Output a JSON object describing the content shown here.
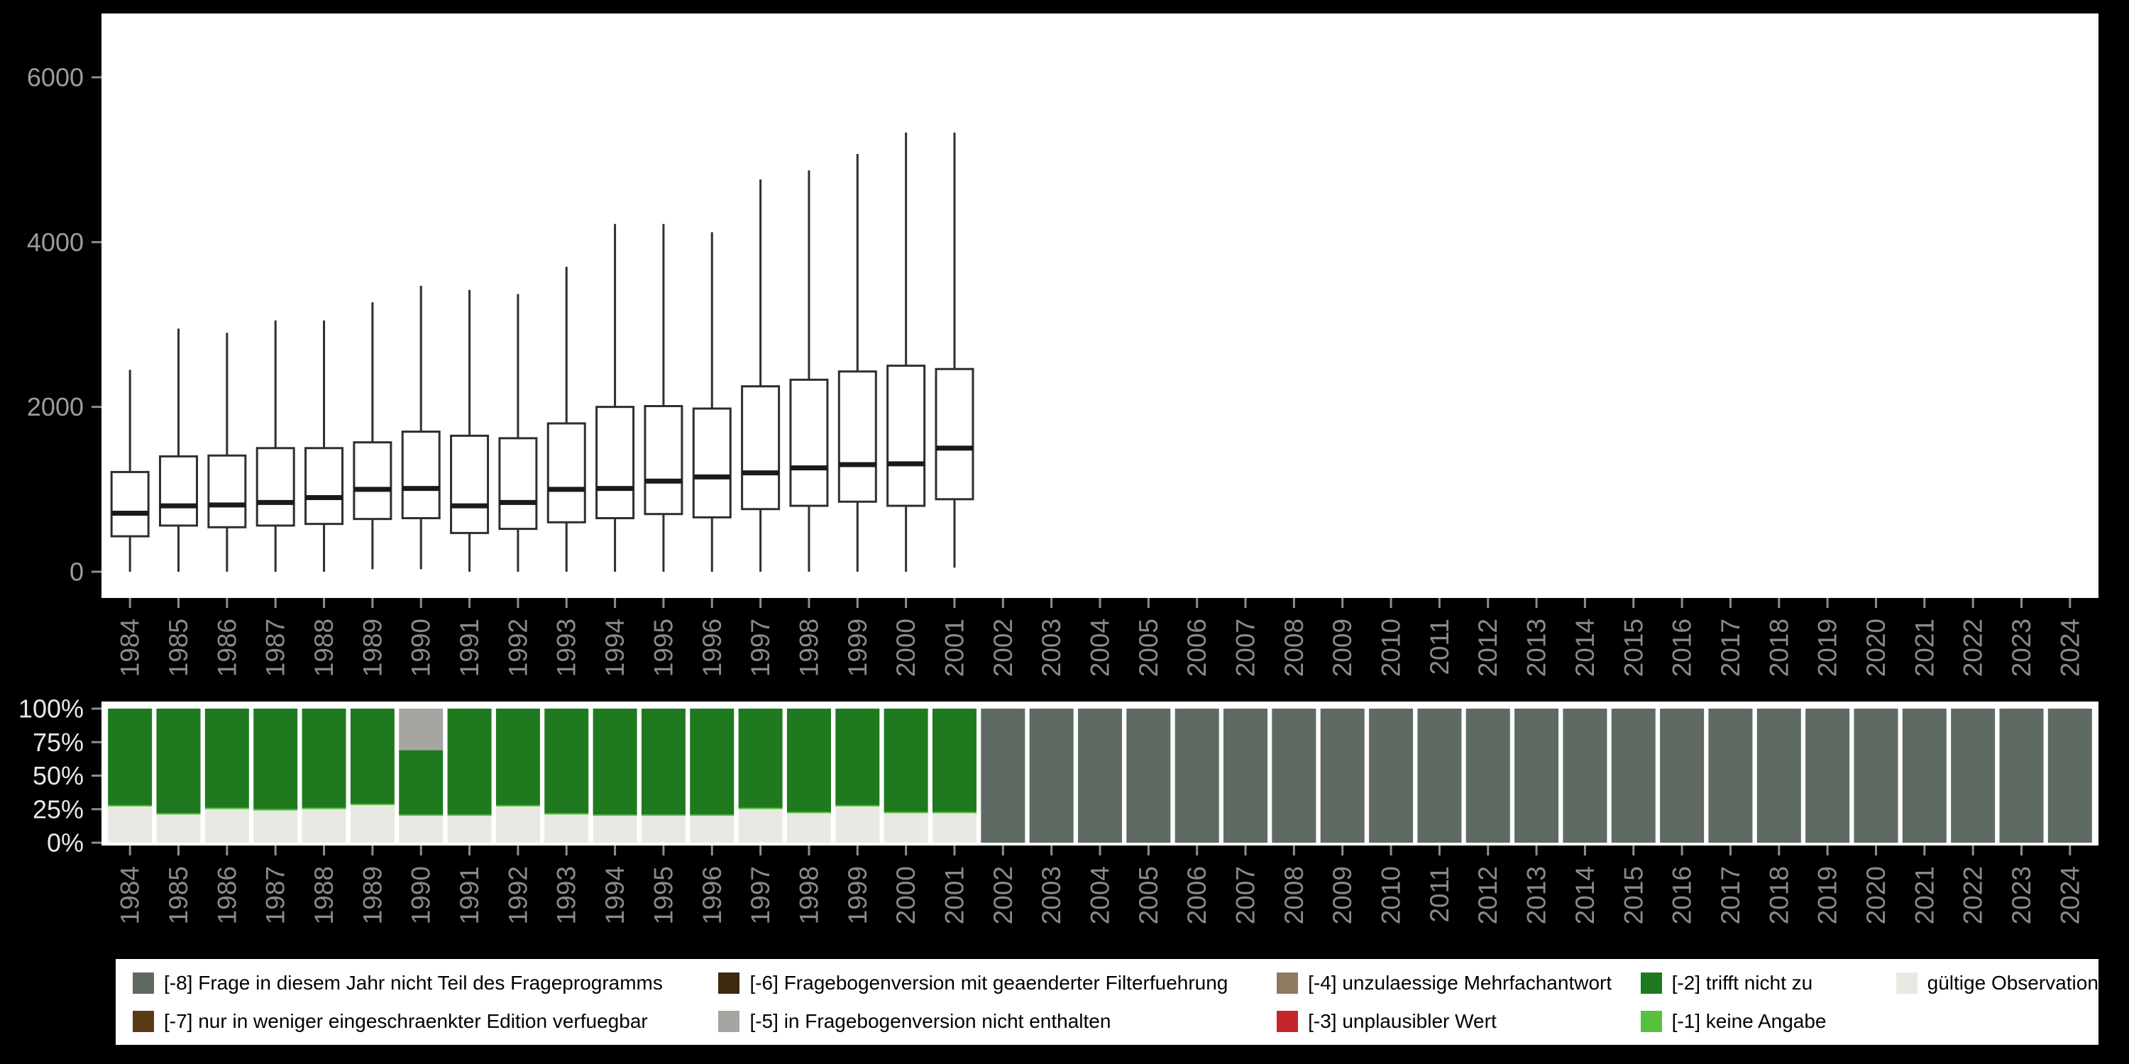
{
  "app": {
    "background_color": "#000000",
    "panel_color": "#ffffff",
    "axis_text_color": "#8a8a8a",
    "percent_text_color": "#e8e8e8"
  },
  "chart_data": [
    {
      "type": "boxplot",
      "title": "",
      "xlabel": "",
      "ylabel": "",
      "ylim": [
        0,
        6400
      ],
      "grid": false,
      "box_stroke_color": "#2f2f2f",
      "yticks": [
        {
          "value": 0,
          "label": "0"
        },
        {
          "value": 2000,
          "label": "2000"
        },
        {
          "value": 4000,
          "label": "4000"
        },
        {
          "value": 6000,
          "label": "6000"
        }
      ],
      "x_categories": [
        "1984",
        "1985",
        "1986",
        "1987",
        "1988",
        "1989",
        "1990",
        "1991",
        "1992",
        "1993",
        "1994",
        "1995",
        "1996",
        "1997",
        "1998",
        "1999",
        "2000",
        "2001",
        "2002",
        "2003",
        "2004",
        "2005",
        "2006",
        "2007",
        "2008",
        "2009",
        "2010",
        "2011",
        "2012",
        "2013",
        "2014",
        "2015",
        "2016",
        "2017",
        "2018",
        "2019",
        "2020",
        "2021",
        "2022",
        "2023",
        "2024"
      ],
      "boxes": [
        {
          "year": "1984",
          "whislo": 0,
          "q1": 430,
          "med": 710,
          "q3": 1210,
          "whishi": 2450
        },
        {
          "year": "1985",
          "whislo": 0,
          "q1": 560,
          "med": 800,
          "q3": 1400,
          "whishi": 2950
        },
        {
          "year": "1986",
          "whislo": 0,
          "q1": 540,
          "med": 810,
          "q3": 1410,
          "whishi": 2900
        },
        {
          "year": "1987",
          "whislo": 0,
          "q1": 560,
          "med": 840,
          "q3": 1500,
          "whishi": 3050
        },
        {
          "year": "1988",
          "whislo": 0,
          "q1": 580,
          "med": 900,
          "q3": 1500,
          "whishi": 3050
        },
        {
          "year": "1989",
          "whislo": 30,
          "q1": 640,
          "med": 1000,
          "q3": 1570,
          "whishi": 3270
        },
        {
          "year": "1990",
          "whislo": 30,
          "q1": 650,
          "med": 1010,
          "q3": 1700,
          "whishi": 3470
        },
        {
          "year": "1991",
          "whislo": 0,
          "q1": 470,
          "med": 800,
          "q3": 1650,
          "whishi": 3420
        },
        {
          "year": "1992",
          "whislo": 0,
          "q1": 520,
          "med": 840,
          "q3": 1620,
          "whishi": 3370
        },
        {
          "year": "1993",
          "whislo": 0,
          "q1": 600,
          "med": 1000,
          "q3": 1800,
          "whishi": 3700
        },
        {
          "year": "1994",
          "whislo": 0,
          "q1": 650,
          "med": 1010,
          "q3": 2000,
          "whishi": 4220
        },
        {
          "year": "1995",
          "whislo": 0,
          "q1": 700,
          "med": 1100,
          "q3": 2010,
          "whishi": 4220
        },
        {
          "year": "1996",
          "whislo": 0,
          "q1": 660,
          "med": 1150,
          "q3": 1980,
          "whishi": 4120
        },
        {
          "year": "1997",
          "whislo": 0,
          "q1": 760,
          "med": 1200,
          "q3": 2250,
          "whishi": 4760
        },
        {
          "year": "1998",
          "whislo": 0,
          "q1": 800,
          "med": 1260,
          "q3": 2330,
          "whishi": 4870
        },
        {
          "year": "1999",
          "whislo": 0,
          "q1": 850,
          "med": 1300,
          "q3": 2430,
          "whishi": 5070
        },
        {
          "year": "2000",
          "whislo": 0,
          "q1": 800,
          "med": 1310,
          "q3": 2500,
          "whishi": 5330
        },
        {
          "year": "2001",
          "whislo": 50,
          "q1": 880,
          "med": 1500,
          "q3": 2460,
          "whishi": 5330
        }
      ]
    },
    {
      "type": "bar",
      "stacked": true,
      "title": "",
      "xlabel": "",
      "ylabel": "",
      "ylim": [
        0,
        100
      ],
      "grid": false,
      "yticks": [
        {
          "value": 0,
          "label": "0%"
        },
        {
          "value": 25,
          "label": "25%"
        },
        {
          "value": 50,
          "label": "50%"
        },
        {
          "value": 75,
          "label": "75%"
        },
        {
          "value": 100,
          "label": "100%"
        }
      ],
      "x_categories": [
        "1984",
        "1985",
        "1986",
        "1987",
        "1988",
        "1989",
        "1990",
        "1991",
        "1992",
        "1993",
        "1994",
        "1995",
        "1996",
        "1997",
        "1998",
        "1999",
        "2000",
        "2001",
        "2002",
        "2003",
        "2004",
        "2005",
        "2006",
        "2007",
        "2008",
        "2009",
        "2010",
        "2011",
        "2012",
        "2013",
        "2014",
        "2015",
        "2016",
        "2017",
        "2018",
        "2019",
        "2020",
        "2021",
        "2022",
        "2023",
        "2024"
      ],
      "series": [
        {
          "key": "valid",
          "name": "gültige Observationen",
          "color": "#e9e9e4",
          "values": [
            27,
            21,
            25,
            24,
            25,
            28,
            20,
            20,
            27,
            21,
            20,
            20,
            20,
            25,
            22,
            27,
            22,
            22,
            0,
            0,
            0,
            0,
            0,
            0,
            0,
            0,
            0,
            0,
            0,
            0,
            0,
            0,
            0,
            0,
            0,
            0,
            0,
            0,
            0,
            0,
            0
          ]
        },
        {
          "key": "minus1_keine_angabe",
          "name": "[-1] keine Angabe",
          "color": "#57c13e",
          "values": [
            1,
            1,
            1,
            1,
            1,
            1,
            1,
            1,
            1,
            1,
            1,
            1,
            1,
            1,
            1,
            1,
            1,
            1,
            0,
            0,
            0,
            0,
            0,
            0,
            0,
            0,
            0,
            0,
            0,
            0,
            0,
            0,
            0,
            0,
            0,
            0,
            0,
            0,
            0,
            0,
            0
          ]
        },
        {
          "key": "minus2_trifft_nicht_zu",
          "name": "[-2] trifft nicht zu",
          "color": "#1f7a1f",
          "values": [
            72,
            78,
            74,
            75,
            74,
            71,
            48,
            79,
            72,
            78,
            79,
            79,
            79,
            74,
            77,
            72,
            77,
            77,
            0,
            0,
            0,
            0,
            0,
            0,
            0,
            0,
            0,
            0,
            0,
            0,
            0,
            0,
            0,
            0,
            0,
            0,
            0,
            0,
            0,
            0,
            0
          ]
        },
        {
          "key": "minus5_nicht_enthalten",
          "name": "[-5] in Fragebogenversion nicht enthalten",
          "color": "#a5a6a2",
          "values": [
            0,
            0,
            0,
            0,
            0,
            0,
            31,
            0,
            0,
            0,
            0,
            0,
            0,
            0,
            0,
            0,
            0,
            0,
            0,
            0,
            0,
            0,
            0,
            0,
            0,
            0,
            0,
            0,
            0,
            0,
            0,
            0,
            0,
            0,
            0,
            0,
            0,
            0,
            0,
            0,
            0
          ]
        },
        {
          "key": "minus8_nicht_teil",
          "name": "[-8] Frage in diesem Jahr nicht Teil des Frageprogramms",
          "color": "#5e6a62",
          "values": [
            0,
            0,
            0,
            0,
            0,
            0,
            0,
            0,
            0,
            0,
            0,
            0,
            0,
            0,
            0,
            0,
            0,
            0,
            100,
            100,
            100,
            100,
            100,
            100,
            100,
            100,
            100,
            100,
            100,
            100,
            100,
            100,
            100,
            100,
            100,
            100,
            100,
            100,
            100,
            100,
            100
          ]
        }
      ]
    }
  ],
  "legend": {
    "columns": [
      {
        "items": [
          {
            "label": "[-8] Frage in diesem Jahr nicht Teil des Frageprogramms",
            "color": "#5e6a62"
          },
          {
            "label": "[-7] nur in weniger eingeschraenkter Edition verfuegbar",
            "color": "#5b3a16"
          }
        ]
      },
      {
        "items": [
          {
            "label": "[-6] Fragebogenversion mit geaenderter Filterfuehrung",
            "color": "#3e2a0e"
          },
          {
            "label": "[-5] in Fragebogenversion nicht enthalten",
            "color": "#a5a6a2"
          }
        ]
      },
      {
        "items": [
          {
            "label": "[-4] unzulaessige Mehrfachantwort",
            "color": "#8d7a60"
          },
          {
            "label": "[-3] unplausibler Wert",
            "color": "#c4262b"
          }
        ]
      },
      {
        "items": [
          {
            "label": "[-2] trifft nicht zu",
            "color": "#1f7a1f"
          },
          {
            "label": "[-1] keine Angabe",
            "color": "#57c13e"
          }
        ]
      },
      {
        "items": [
          {
            "label": "gültige Observationen",
            "color": "#e9e9e4"
          }
        ]
      }
    ]
  }
}
